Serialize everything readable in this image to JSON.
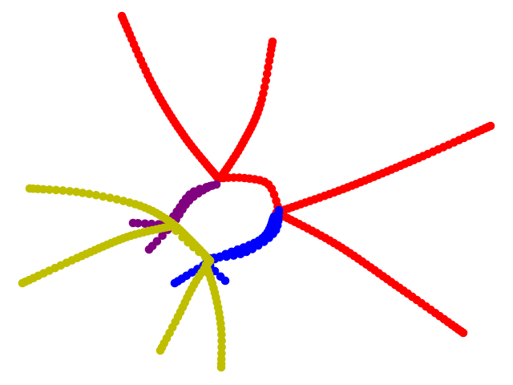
{
  "colors": {
    "background": "#ffffff",
    "red": "#ff0000",
    "blue": "#0000ff",
    "purple": "#800080",
    "olive": "#bfbf00"
  },
  "strands": [
    {
      "name": "red-strand-top-left",
      "color": "red"
    },
    {
      "name": "red-strand-top",
      "color": "red"
    },
    {
      "name": "red-strand-right",
      "color": "red"
    },
    {
      "name": "red-strand-bottom-right",
      "color": "red"
    },
    {
      "name": "red-arc-loop",
      "color": "red"
    },
    {
      "name": "blue-arc-loop",
      "color": "blue"
    },
    {
      "name": "blue-arc-loop-inner",
      "color": "blue"
    },
    {
      "name": "blue-stub",
      "color": "blue"
    },
    {
      "name": "purple-arc-outer",
      "color": "purple"
    },
    {
      "name": "purple-arc-inner",
      "color": "purple"
    },
    {
      "name": "purple-stub",
      "color": "purple"
    },
    {
      "name": "olive-strand-left",
      "color": "olive"
    },
    {
      "name": "olive-strand-lower-left",
      "color": "olive"
    },
    {
      "name": "olive-strand-bottom",
      "color": "olive"
    },
    {
      "name": "olive-strand-bottom-2",
      "color": "olive"
    },
    {
      "name": "olive-connector",
      "color": "olive"
    }
  ]
}
